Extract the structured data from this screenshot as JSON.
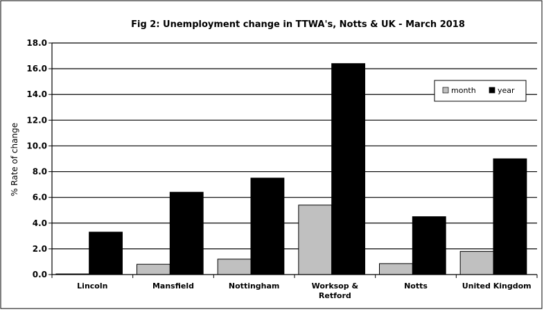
{
  "chart_data": {
    "type": "bar",
    "title": "Fig 2:  Unemployment change in TTWA's, Notts & UK - March 2018",
    "ylabel": "% Rate of change",
    "xlabel": "",
    "categories": [
      [
        "Lincoln"
      ],
      [
        "Mansfield"
      ],
      [
        "Nottingham"
      ],
      [
        "Worksop &",
        "Retford"
      ],
      [
        "Notts"
      ],
      [
        "United Kingdom"
      ]
    ],
    "series": [
      {
        "name": "month",
        "color": "#c0c0c0",
        "values": [
          0.05,
          0.8,
          1.2,
          5.4,
          0.85,
          1.8
        ]
      },
      {
        "name": "year",
        "color": "#000000",
        "values": [
          3.3,
          6.4,
          7.5,
          16.4,
          4.5,
          9.0
        ]
      }
    ],
    "ylim": [
      0,
      18
    ],
    "yticks": [
      "0.0",
      "2.0",
      "4.0",
      "6.0",
      "8.0",
      "10.0",
      "12.0",
      "14.0",
      "16.0",
      "18.0"
    ],
    "grid": true,
    "legend_position": "top-right"
  }
}
